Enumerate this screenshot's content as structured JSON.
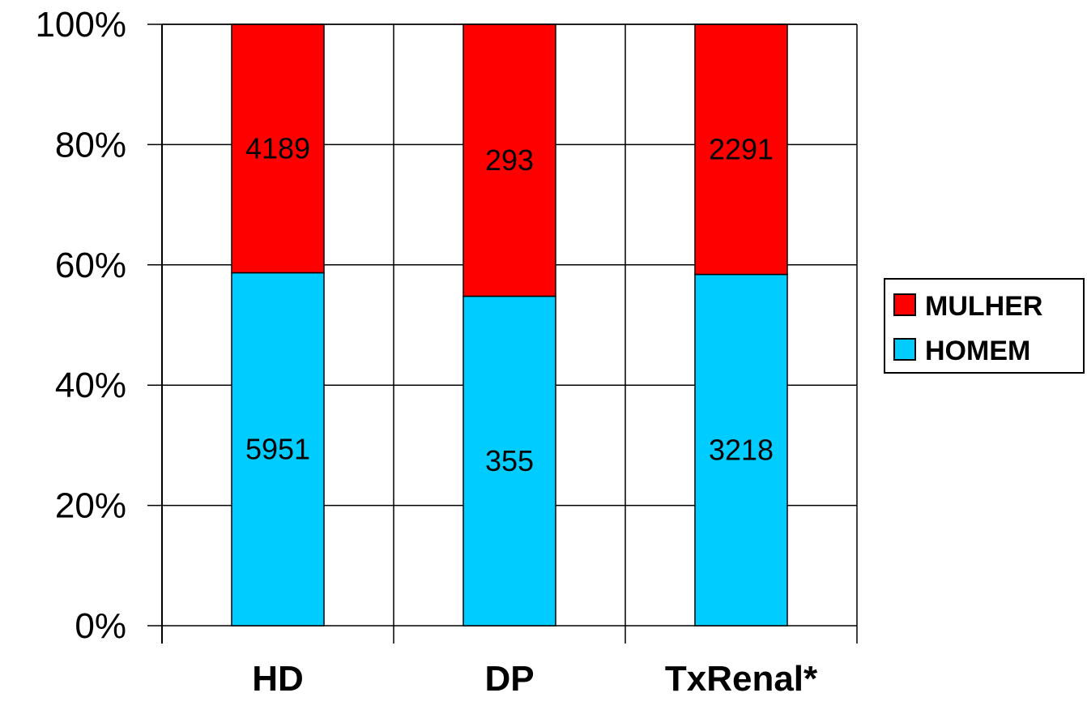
{
  "chart_data": {
    "type": "bar",
    "stacked": true,
    "normalized": true,
    "categories": [
      "HD",
      "DP",
      "TxRenal*"
    ],
    "series": [
      {
        "name": "HOMEM",
        "values": [
          5951,
          355,
          3218
        ],
        "color": "#00ccff"
      },
      {
        "name": "MULHER",
        "values": [
          4189,
          293,
          2291
        ],
        "color": "#ff0000"
      }
    ],
    "y_ticks": [
      "0%",
      "20%",
      "40%",
      "60%",
      "80%",
      "100%"
    ],
    "ylim": [
      0,
      100
    ],
    "grid": true,
    "legend": {
      "position": "right",
      "entries": [
        "MULHER",
        "HOMEM"
      ]
    }
  }
}
